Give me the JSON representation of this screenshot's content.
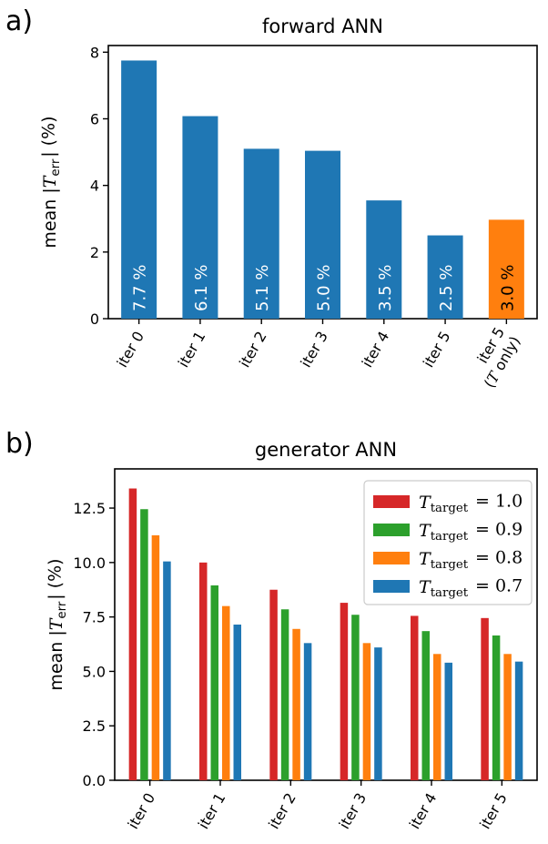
{
  "chart_data": [
    {
      "panel": "a)",
      "type": "bar",
      "title": "forward ANN",
      "ylabel": "mean |T_err| (%)",
      "ylim": [
        0,
        8.2
      ],
      "yticks": [
        "0",
        "2",
        "4",
        "6",
        "8"
      ],
      "categories": [
        "iter 0",
        "iter 1",
        "iter 2",
        "iter 3",
        "iter 4",
        "iter 5",
        "iter 5\n(T only)"
      ],
      "values": [
        7.75,
        6.08,
        5.1,
        5.04,
        3.55,
        2.5,
        2.97
      ],
      "data_labels": [
        "7.7 %",
        "6.1 %",
        "5.1 %",
        "5.0 %",
        "3.5 %",
        "2.5 %",
        "3.0 %"
      ],
      "colors": [
        "#1f77b4",
        "#1f77b4",
        "#1f77b4",
        "#1f77b4",
        "#1f77b4",
        "#1f77b4",
        "#ff7f0e"
      ],
      "grid": false
    },
    {
      "panel": "b)",
      "type": "bar",
      "title": "generator ANN",
      "ylabel": "mean |T_err| (%)",
      "ylim": [
        0,
        14.3
      ],
      "yticks": [
        "0.0",
        "2.5",
        "5.0",
        "7.5",
        "10.0",
        "12.5"
      ],
      "categories": [
        "iter 0",
        "iter 1",
        "iter 2",
        "iter 3",
        "iter 4",
        "iter 5"
      ],
      "legend_position": "top-right",
      "grid": false,
      "series": [
        {
          "name": "T_target = 1.0",
          "color": "#d62728",
          "values": [
            13.4,
            10.0,
            8.75,
            8.15,
            7.55,
            7.45
          ]
        },
        {
          "name": "T_target = 0.9",
          "color": "#2ca02c",
          "values": [
            12.45,
            8.95,
            7.85,
            7.6,
            6.85,
            6.65
          ]
        },
        {
          "name": "T_target = 0.8",
          "color": "#ff7f0e",
          "values": [
            11.25,
            8.0,
            6.95,
            6.3,
            5.8,
            5.8
          ]
        },
        {
          "name": "T_target = 0.7",
          "color": "#1f77b4",
          "values": [
            10.05,
            7.15,
            6.3,
            6.1,
            5.4,
            5.45
          ]
        }
      ]
    }
  ]
}
